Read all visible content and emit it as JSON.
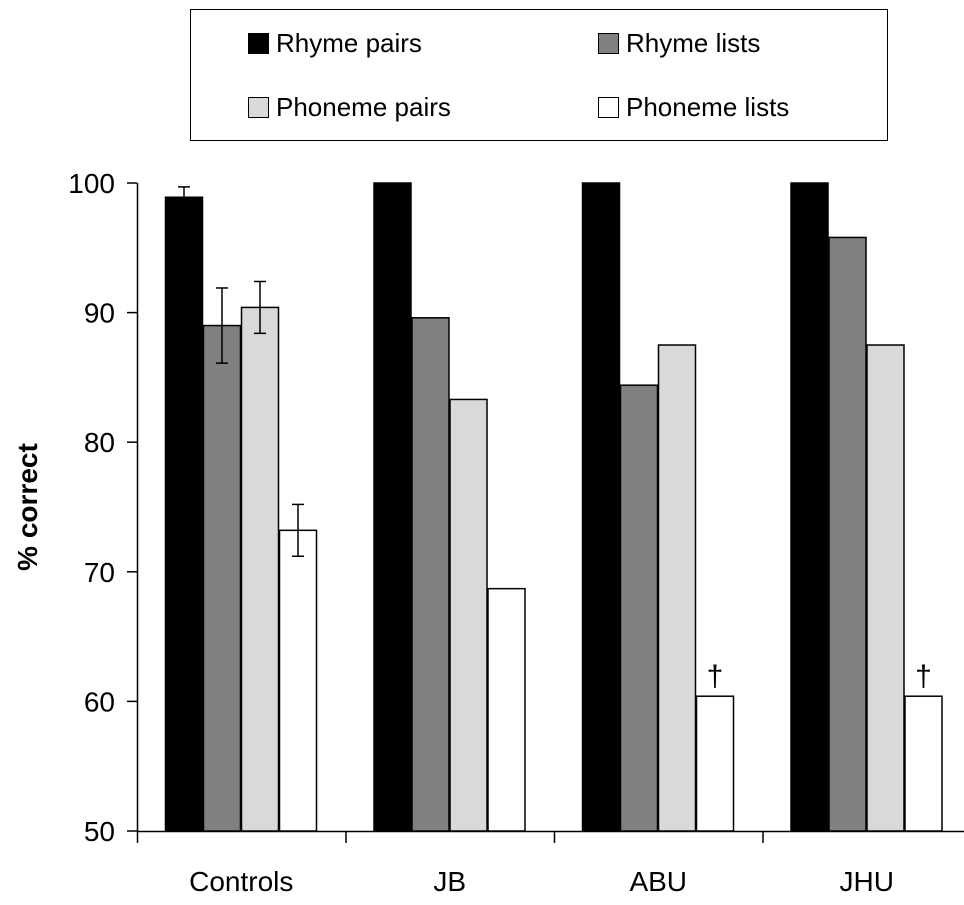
{
  "chart_data": {
    "type": "bar",
    "title": "",
    "xlabel": "",
    "ylabel": "% correct",
    "ylim": [
      50,
      100
    ],
    "yticks": [
      50,
      60,
      70,
      80,
      90,
      100
    ],
    "grid": false,
    "legend_position": "top",
    "categories": [
      "Controls",
      "JB",
      "ABU",
      "JHU"
    ],
    "series": [
      {
        "name": "Rhyme pairs",
        "color": "#000000",
        "values": [
          98.9,
          100,
          100,
          100
        ],
        "errors": [
          0.8,
          null,
          null,
          null
        ]
      },
      {
        "name": "Rhyme lists",
        "color": "#808080",
        "values": [
          89.0,
          89.6,
          84.4,
          95.8
        ],
        "errors": [
          2.9,
          null,
          null,
          null
        ]
      },
      {
        "name": "Phoneme pairs",
        "color": "#d9d9d9",
        "values": [
          90.4,
          83.3,
          87.5,
          87.5
        ],
        "errors": [
          2.0,
          null,
          null,
          null
        ]
      },
      {
        "name": "Phoneme lists",
        "color": "#ffffff",
        "values": [
          73.2,
          68.7,
          60.4,
          60.4
        ],
        "errors": [
          2.0,
          null,
          null,
          null
        ],
        "markers": [
          null,
          null,
          "†",
          "†"
        ]
      }
    ]
  }
}
